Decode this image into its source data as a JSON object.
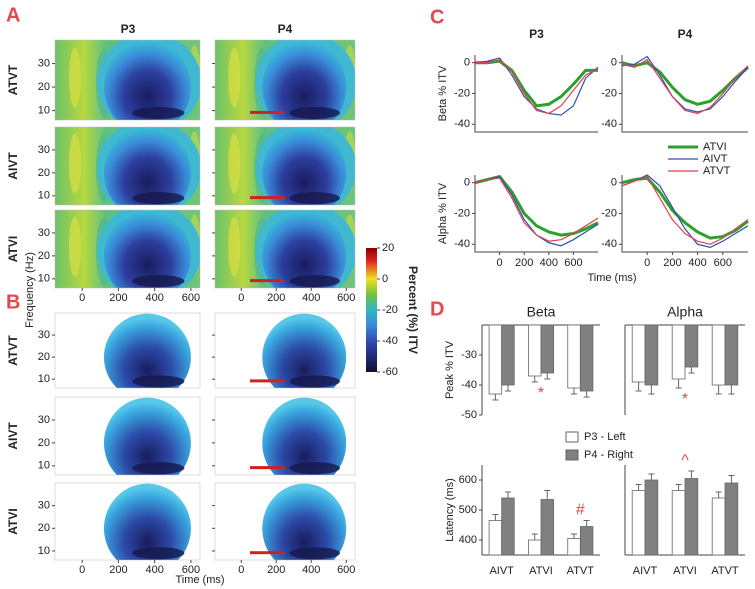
{
  "panel_labels": [
    "A",
    "B",
    "C",
    "D"
  ],
  "heatmaps": {
    "columns": [
      "P3",
      "P4"
    ],
    "rows_a": [
      "ATVT",
      "AIVT",
      "ATVI"
    ],
    "rows_b": [
      "ATVT",
      "AIVT",
      "ATVI"
    ],
    "ylabel": "Frequency (Hz)",
    "xlabel": "Time (ms)",
    "xlim": [
      -150,
      650
    ],
    "xticks": [
      0,
      200,
      400,
      600
    ],
    "ylim": [
      6,
      40
    ],
    "yticks": [
      10,
      20,
      30
    ],
    "colorbar": {
      "label": "Percent (%) ITV",
      "lim": [
        -60,
        20
      ],
      "ticks": [
        20,
        0,
        -20,
        -40,
        -60
      ]
    }
  },
  "chart_data": [
    {
      "type": "line",
      "title": "P3",
      "y_label": "Beta % ITV",
      "x": [
        -200,
        -100,
        0,
        100,
        200,
        300,
        400,
        500,
        600,
        700,
        800
      ],
      "xlim": [
        -200,
        800
      ],
      "ylim": [
        -45,
        5
      ],
      "yticks": [
        0,
        -20,
        -40
      ],
      "series": [
        {
          "color": "#2ca02c",
          "values": [
            0,
            0,
            1,
            -5,
            -18,
            -28,
            -27,
            -22,
            -14,
            -5,
            -5
          ]
        },
        {
          "color": "#3050b0",
          "values": [
            0,
            1,
            3,
            -8,
            -22,
            -30,
            -33,
            -34,
            -28,
            -10,
            -3
          ]
        },
        {
          "color": "#e04050",
          "values": [
            0,
            0,
            2,
            -6,
            -20,
            -31,
            -33,
            -28,
            -18,
            -8,
            -4
          ]
        }
      ]
    },
    {
      "type": "line",
      "title": "P4",
      "x": [
        -200,
        -100,
        0,
        100,
        200,
        300,
        400,
        500,
        600,
        700,
        800
      ],
      "xlim": [
        -200,
        800
      ],
      "ylim": [
        -45,
        5
      ],
      "yticks": [
        0,
        -20,
        -40
      ],
      "series": [
        {
          "name": "ATVI",
          "color": "#2ca02c",
          "values": [
            0,
            -2,
            0,
            -6,
            -16,
            -24,
            -27,
            -25,
            -18,
            -10,
            -3
          ]
        },
        {
          "name": "AIVT",
          "color": "#3050b0",
          "values": [
            -2,
            -1,
            4,
            -8,
            -22,
            -30,
            -32,
            -30,
            -22,
            -12,
            -3
          ]
        },
        {
          "name": "ATVT",
          "color": "#e04050",
          "values": [
            -1,
            -3,
            2,
            -10,
            -22,
            -31,
            -33,
            -29,
            -20,
            -10,
            -2
          ]
        }
      ]
    },
    {
      "type": "line",
      "y_label": "Alpha % ITV",
      "x_label": "Time (ms)",
      "x": [
        -200,
        -100,
        0,
        100,
        200,
        300,
        400,
        500,
        600,
        700,
        800
      ],
      "xlim": [
        -200,
        800
      ],
      "xticks": [
        0,
        200,
        400,
        600
      ],
      "ylim": [
        -45,
        5
      ],
      "yticks": [
        0,
        -20,
        -40
      ],
      "series": [
        {
          "color": "#2ca02c",
          "values": [
            0,
            2,
            4,
            -6,
            -20,
            -28,
            -32,
            -34,
            -33,
            -30,
            -26
          ]
        },
        {
          "color": "#3050b0",
          "values": [
            0,
            2,
            4,
            -8,
            -24,
            -34,
            -39,
            -41,
            -37,
            -32,
            -27
          ]
        },
        {
          "color": "#e04050",
          "values": [
            0,
            2,
            3,
            -10,
            -26,
            -34,
            -38,
            -37,
            -33,
            -28,
            -23
          ]
        }
      ]
    },
    {
      "type": "line",
      "x": [
        -200,
        -100,
        0,
        100,
        200,
        300,
        400,
        500,
        600,
        700,
        800
      ],
      "xlim": [
        -200,
        800
      ],
      "xticks": [
        0,
        200,
        400,
        600
      ],
      "ylim": [
        -45,
        5
      ],
      "yticks": [
        0,
        -20,
        -40
      ],
      "series": [
        {
          "color": "#2ca02c",
          "values": [
            0,
            2,
            3,
            -6,
            -18,
            -26,
            -32,
            -36,
            -35,
            -31,
            -25
          ]
        },
        {
          "color": "#3050b0",
          "values": [
            -2,
            1,
            5,
            -2,
            -16,
            -30,
            -40,
            -42,
            -38,
            -33,
            -28
          ]
        },
        {
          "color": "#e04050",
          "values": [
            -2,
            1,
            4,
            -10,
            -24,
            -33,
            -38,
            -40,
            -36,
            -30,
            -24
          ]
        }
      ]
    },
    {
      "type": "bar",
      "title": "Beta",
      "y_label": "Peak % ITV",
      "categories": [
        null,
        null,
        null
      ],
      "ylim": [
        -50,
        -20
      ],
      "yticks": [
        -30,
        -40,
        -50
      ],
      "series": [
        {
          "name": "P3 - Left",
          "color": "#ffffff",
          "values": [
            -43,
            -37,
            -41
          ],
          "errors": [
            2,
            2,
            2
          ]
        },
        {
          "name": "P4 - Right",
          "color": "#808080",
          "values": [
            -40,
            -36,
            -42
          ],
          "errors": [
            2,
            2,
            2
          ]
        }
      ],
      "annotations": [
        {
          "text": "*",
          "category": 1,
          "color": "#e8474f"
        }
      ]
    },
    {
      "type": "bar",
      "title": "Alpha",
      "categories": [
        null,
        null,
        null
      ],
      "ylim": [
        -50,
        -20
      ],
      "series": [
        {
          "color": "#ffffff",
          "values": [
            -39,
            -38,
            -40
          ],
          "errors": [
            3,
            3,
            3
          ]
        },
        {
          "color": "#808080",
          "values": [
            -40,
            -34,
            -40
          ],
          "errors": [
            3,
            2,
            3
          ]
        }
      ],
      "annotations": [
        {
          "text": "*",
          "category": 1,
          "color": "#e8474f"
        }
      ]
    },
    {
      "type": "bar",
      "y_label": "Latency (ms)",
      "categories": [
        "AIVT",
        "ATVI",
        "ATVT"
      ],
      "ylim": [
        350,
        650
      ],
      "yticks": [
        400,
        500,
        600
      ],
      "series": [
        {
          "color": "#ffffff",
          "values": [
            465,
            400,
            405
          ],
          "errors": [
            20,
            20,
            15
          ]
        },
        {
          "color": "#808080",
          "values": [
            540,
            535,
            445
          ],
          "errors": [
            20,
            30,
            20
          ]
        }
      ],
      "annotations": [
        {
          "text": "#",
          "category": 2,
          "color": "#e8474f"
        }
      ]
    },
    {
      "type": "bar",
      "categories": [
        "AIVT",
        "ATVI",
        "ATVT"
      ],
      "ylim": [
        350,
        650
      ],
      "series": [
        {
          "color": "#ffffff",
          "values": [
            565,
            565,
            540
          ],
          "errors": [
            20,
            20,
            20
          ]
        },
        {
          "color": "#808080",
          "values": [
            600,
            605,
            590
          ],
          "errors": [
            20,
            25,
            25
          ]
        }
      ],
      "annotations": [
        {
          "text": "^",
          "category": 1,
          "color": "#e8474f"
        }
      ]
    }
  ]
}
